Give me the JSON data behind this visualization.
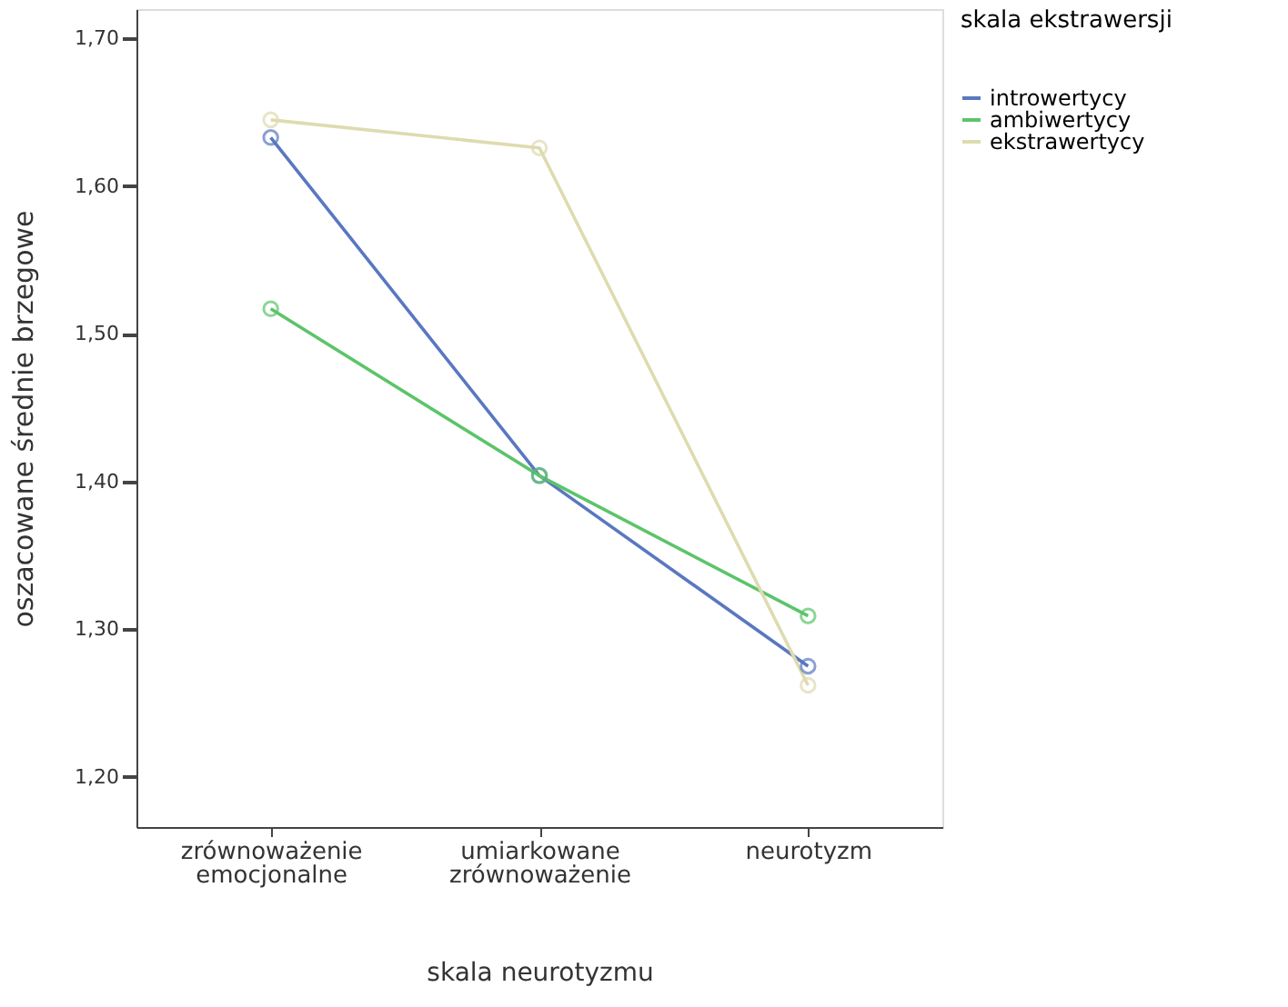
{
  "chart_data": {
    "type": "line",
    "xlabel": "skala neurotyzmu",
    "ylabel": "oszacowane średnie brzegowe",
    "legend_title": "skala ekstrawersji",
    "categories": [
      "zrównoważenie emocjonalne",
      "umiarkowane zrównoważenie",
      "neurotyzm"
    ],
    "series": [
      {
        "name": "introwertycy",
        "color": "#5a77c0",
        "values": [
          1.633,
          1.404,
          1.275
        ]
      },
      {
        "name": "ambiwertycy",
        "color": "#5cc46a",
        "values": [
          1.517,
          1.404,
          1.309
        ]
      },
      {
        "name": "ekstrawertycy",
        "color": "#dedbb0",
        "values": [
          1.645,
          1.626,
          1.262
        ]
      }
    ],
    "ylim": [
      1.166,
      1.72
    ],
    "yticks": [
      {
        "value": 1.2,
        "label": "1,20"
      },
      {
        "value": 1.3,
        "label": "1,30"
      },
      {
        "value": 1.4,
        "label": "1,40"
      },
      {
        "value": 1.5,
        "label": "1,50"
      },
      {
        "value": 1.6,
        "label": "1,60"
      },
      {
        "value": 1.7,
        "label": "1,70"
      }
    ],
    "marker": "circle",
    "line_style": "solid",
    "legend": "top right",
    "grid": false
  }
}
